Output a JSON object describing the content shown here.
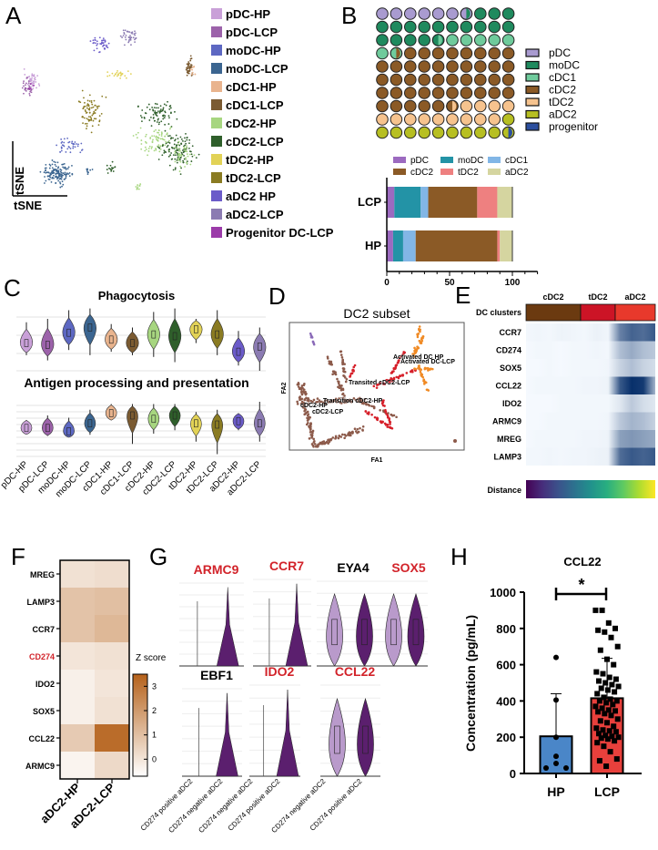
{
  "panel_labels": [
    "A",
    "B",
    "C",
    "D",
    "E",
    "F",
    "G",
    "H"
  ],
  "chart_data": [
    {
      "panel": "A",
      "type": "scatter",
      "xlabel": "tSNE",
      "ylabel": "tSNE",
      "legend": [
        {
          "name": "pDC-HP",
          "color": "#c9a0d8"
        },
        {
          "name": "pDC-LCP",
          "color": "#9c62aa"
        },
        {
          "name": "moDC-HP",
          "color": "#5d68c2"
        },
        {
          "name": "moDC-LCP",
          "color": "#3b6590"
        },
        {
          "name": "cDC1-HP",
          "color": "#e9b48e"
        },
        {
          "name": "cDC1-LCP",
          "color": "#7b5b32"
        },
        {
          "name": "cDC2-HP",
          "color": "#a7d680"
        },
        {
          "name": "cDC2-LCP",
          "color": "#2f5f2b"
        },
        {
          "name": "tDC2-HP",
          "color": "#e2d256"
        },
        {
          "name": "tDC2-LCP",
          "color": "#8a7b22"
        },
        {
          "name": "aDC2 HP",
          "color": "#6b5bc9"
        },
        {
          "name": "aDC2-LCP",
          "color": "#8b7bb2"
        },
        {
          "name": "Progenitor DC-LCP",
          "color": "#9b3ba9"
        }
      ],
      "legend_placement": "right"
    },
    {
      "panel": "B-waffle",
      "type": "waffle",
      "categories": [
        "pDC",
        "moDC",
        "cDC1",
        "cDC2",
        "tDC2",
        "aDC2",
        "progenitor"
      ],
      "values": [
        6.5,
        18,
        7,
        44,
        13.5,
        10.5,
        0.5
      ],
      "colors": [
        "#a99bd0",
        "#1f8a5e",
        "#6fcb9c",
        "#8b5a26",
        "#f6c38e",
        "#b7bf22",
        "#2c4f9e"
      ],
      "legend_placement": "right"
    },
    {
      "panel": "B-bars",
      "type": "bar",
      "orientation": "horizontal",
      "stacked": true,
      "categories": [
        "LCP",
        "HP"
      ],
      "series": [
        {
          "name": "pDC",
          "color": "#9c6ac0",
          "values": [
            6,
            5
          ]
        },
        {
          "name": "moDC",
          "color": "#2393a6",
          "values": [
            21,
            8
          ]
        },
        {
          "name": "cDC1",
          "color": "#82b6e6",
          "values": [
            6,
            10
          ]
        },
        {
          "name": "cDC2",
          "color": "#8b5a26",
          "values": [
            39,
            65
          ]
        },
        {
          "name": "tDC2",
          "color": "#ee8080",
          "values": [
            16,
            2
          ]
        },
        {
          "name": "aDC2",
          "color": "#d5d5a0",
          "values": [
            12,
            10
          ]
        }
      ],
      "xlim": [
        0,
        120
      ],
      "xticks": [
        "0",
        "50",
        "100"
      ],
      "legend_placement": "top"
    },
    {
      "panel": "C",
      "type": "violin",
      "categories": [
        "pDC-HP",
        "pDC-LCP",
        "moDC-HP",
        "moDC-LCP",
        "cDC1-HP",
        "cDC1-LCP",
        "cDC2-HP",
        "cDC2-LCP",
        "tDC2-HP",
        "tDC2-LCP",
        "aDC2-HP",
        "aDC2-LCP"
      ],
      "colors": [
        "#c9a0d8",
        "#9c62aa",
        "#5d68c2",
        "#3b6590",
        "#e9b48e",
        "#7b5b32",
        "#a7d680",
        "#2f5f2b",
        "#e2d256",
        "#8a7b22",
        "#6b5bc9",
        "#8b7bb2"
      ],
      "series": [
        {
          "name": "Phagocytosis",
          "medians": [
            1.6,
            1.5,
            2.2,
            2.5,
            1.8,
            1.6,
            2.1,
            2.0,
            2.4,
            2.1,
            1.1,
            1.4
          ],
          "mins": [
            0.9,
            0.6,
            1.2,
            0.9,
            1.1,
            0.9,
            0.8,
            0.5,
            1.6,
            0.9,
            0.3,
            0.0
          ],
          "maxs": [
            2.8,
            3.0,
            3.5,
            3.6,
            2.7,
            2.5,
            3.4,
            3.6,
            3.0,
            3.5,
            2.3,
            2.5
          ]
        },
        {
          "name": "Antigen processing and presentation",
          "medians": [
            2.5,
            2.5,
            2.2,
            2.9,
            3.8,
            3.6,
            3.3,
            3.6,
            2.9,
            2.8,
            3.1,
            2.9
          ],
          "mins": [
            2.0,
            1.8,
            1.8,
            1.9,
            3.2,
            1.1,
            2.0,
            2.3,
            1.3,
            0.2,
            2.3,
            1.3
          ],
          "maxs": [
            3.2,
            3.6,
            3.4,
            4.1,
            4.6,
            4.6,
            4.6,
            4.6,
            3.9,
            4.1,
            3.8,
            4.8
          ]
        }
      ]
    },
    {
      "panel": "D",
      "type": "scatter",
      "title": "DC2 subset",
      "xlabel": "FA1",
      "ylabel": "FA2",
      "annotations": [
        "Activated DC HP",
        "Activated DC-LCP",
        "Transited cDC2-LCP",
        "Transition cDC2-HP",
        "cDC2-HP",
        "cDC2-LCP"
      ],
      "colors": {
        "cDC2": "#8c5a4a",
        "transition": "#d6202a",
        "activated": "#f08a24",
        "pDC": "#8a6ab8"
      }
    },
    {
      "panel": "E",
      "type": "heatmap",
      "cluster_row_label": "DC clusters",
      "clusters": [
        {
          "name": "cDC2",
          "color": "#6b3a10"
        },
        {
          "name": "tDC2",
          "color": "#cc1426"
        },
        {
          "name": "aDC2",
          "color": "#e8392c"
        }
      ],
      "genes": [
        {
          "name": "CCR7",
          "values": [
            0.02,
            0.03,
            0.02,
            0.04,
            0.03,
            0.02,
            0.05,
            0.03,
            0.6,
            0.75,
            0.7,
            0.8
          ]
        },
        {
          "name": "CD274",
          "values": [
            0.01,
            0.02,
            0.02,
            0.01,
            0.02,
            0.02,
            0.03,
            0.02,
            0.3,
            0.4,
            0.3,
            0.25
          ]
        },
        {
          "name": "SOX5",
          "values": [
            0.01,
            0.01,
            0.02,
            0.01,
            0.02,
            0.02,
            0.02,
            0.03,
            0.2,
            0.3,
            0.2,
            0.15
          ]
        },
        {
          "name": "CCL22",
          "values": [
            0.01,
            0.02,
            0.02,
            0.02,
            0.02,
            0.03,
            0.03,
            0.04,
            0.8,
            1.0,
            0.95,
            0.35
          ]
        },
        {
          "name": "IDO2",
          "values": [
            0.01,
            0.01,
            0.01,
            0.02,
            0.02,
            0.02,
            0.02,
            0.02,
            0.1,
            0.25,
            0.15,
            0.1
          ]
        },
        {
          "name": "ARMC9",
          "values": [
            0.01,
            0.01,
            0.02,
            0.02,
            0.02,
            0.02,
            0.02,
            0.03,
            0.25,
            0.35,
            0.3,
            0.2
          ]
        },
        {
          "name": "MREG",
          "values": [
            0.01,
            0.02,
            0.02,
            0.02,
            0.02,
            0.03,
            0.03,
            0.04,
            0.45,
            0.5,
            0.45,
            0.4
          ]
        },
        {
          "name": "LAMP3",
          "values": [
            0.02,
            0.02,
            0.03,
            0.02,
            0.03,
            0.03,
            0.04,
            0.05,
            0.7,
            0.8,
            0.75,
            0.8
          ]
        }
      ],
      "distance_label": "Distance",
      "distance_colormap": "viridis"
    },
    {
      "panel": "F",
      "type": "heatmap",
      "columns": [
        "aDC2-HP",
        "aDC2-LCP"
      ],
      "rows": [
        {
          "name": "MREG",
          "values": [
            0.1,
            0.2
          ],
          "highlight": false
        },
        {
          "name": "LAMP3",
          "values": [
            0.9,
            1.0
          ],
          "highlight": false
        },
        {
          "name": "CCR7",
          "values": [
            0.9,
            1.2
          ],
          "highlight": false
        },
        {
          "name": "CD274",
          "values": [
            0.0,
            0.1
          ],
          "highlight": true
        },
        {
          "name": "IDO2",
          "values": [
            -0.3,
            0.0
          ],
          "highlight": false
        },
        {
          "name": "SOX5",
          "values": [
            -0.3,
            0.1
          ],
          "highlight": false
        },
        {
          "name": "CCL22",
          "values": [
            0.7,
            3.2
          ],
          "highlight": false
        },
        {
          "name": "ARMC9",
          "values": [
            -0.4,
            0.3
          ],
          "highlight": false
        }
      ],
      "colorbar_label": "Z score",
      "colorbar_ticks": [
        "3",
        "2",
        "1",
        "0"
      ],
      "zlim": [
        -0.7,
        3.5
      ],
      "colormap": [
        "#ffffff",
        "#b5611a"
      ],
      "highlight_color": "#d2232a"
    },
    {
      "panel": "G",
      "type": "violin",
      "genes": [
        {
          "name": "ARMC9",
          "highlight": true,
          "groups": [
            "CD274 positive aDC2",
            "CD274 negative aDC2"
          ]
        },
        {
          "name": "CCR7",
          "highlight": true,
          "groups": [
            "CD274 negative aDC2",
            "CD274 positive aDC2"
          ]
        },
        {
          "name": "EYA4",
          "highlight": false,
          "groups": [
            "CD274 negative aDC2",
            "CD274 positive aDC2"
          ]
        },
        {
          "name": "SOX5",
          "highlight": true,
          "groups": [
            "CD274 negative aDC2",
            "CD274 positive aDC2"
          ]
        },
        {
          "name": "EBF1",
          "highlight": false,
          "groups": [
            "CD274 positive aDC2",
            "CD274 negative aDC2"
          ]
        },
        {
          "name": "IDO2",
          "highlight": true,
          "groups": [
            "CD274 negative aDC2",
            "CD274 positive aDC2"
          ]
        },
        {
          "name": "CCL22",
          "highlight": true,
          "groups": [
            "CD274 negative aDC2",
            "CD274 positive aDC2"
          ]
        }
      ],
      "x_tick_labels": [
        "CD274 positive aDC2",
        "CD274 negative aDC2",
        "CD274 negative aDC2",
        "CD274 positive aDC2",
        "CD274 negative aDC2",
        "CD274 positive aDC2"
      ],
      "colors": {
        "light": "#b99acb",
        "dark": "#5b1f6e"
      },
      "highlight_color": "#d2232a"
    },
    {
      "panel": "H",
      "type": "bar",
      "title": "CCL22",
      "ylabel": "Concentration (pg/mL)",
      "categories": [
        "HP",
        "LCP"
      ],
      "values": [
        205,
        415
      ],
      "error_upper": [
        440,
        635
      ],
      "colors": [
        "#4a86c8",
        "#e8403c"
      ],
      "ylim": [
        0,
        1000
      ],
      "yticks": [
        "0",
        "200",
        "400",
        "600",
        "800",
        "1000"
      ],
      "significance": "*",
      "points": {
        "HP": [
          640,
          405,
          200,
          95,
          55,
          30,
          30
        ],
        "LCP": [
          900,
          900,
          830,
          800,
          790,
          780,
          750,
          700,
          680,
          630,
          600,
          560,
          550,
          530,
          520,
          510,
          500,
          490,
          480,
          470,
          460,
          450,
          440,
          420,
          410,
          400,
          400,
          390,
          380,
          370,
          360,
          350,
          345,
          340,
          330,
          320,
          300,
          290,
          280,
          260,
          250,
          240,
          235,
          230,
          220,
          210,
          205,
          200,
          195,
          190,
          180,
          170,
          150,
          120,
          80,
          70,
          40
        ]
      }
    }
  ]
}
